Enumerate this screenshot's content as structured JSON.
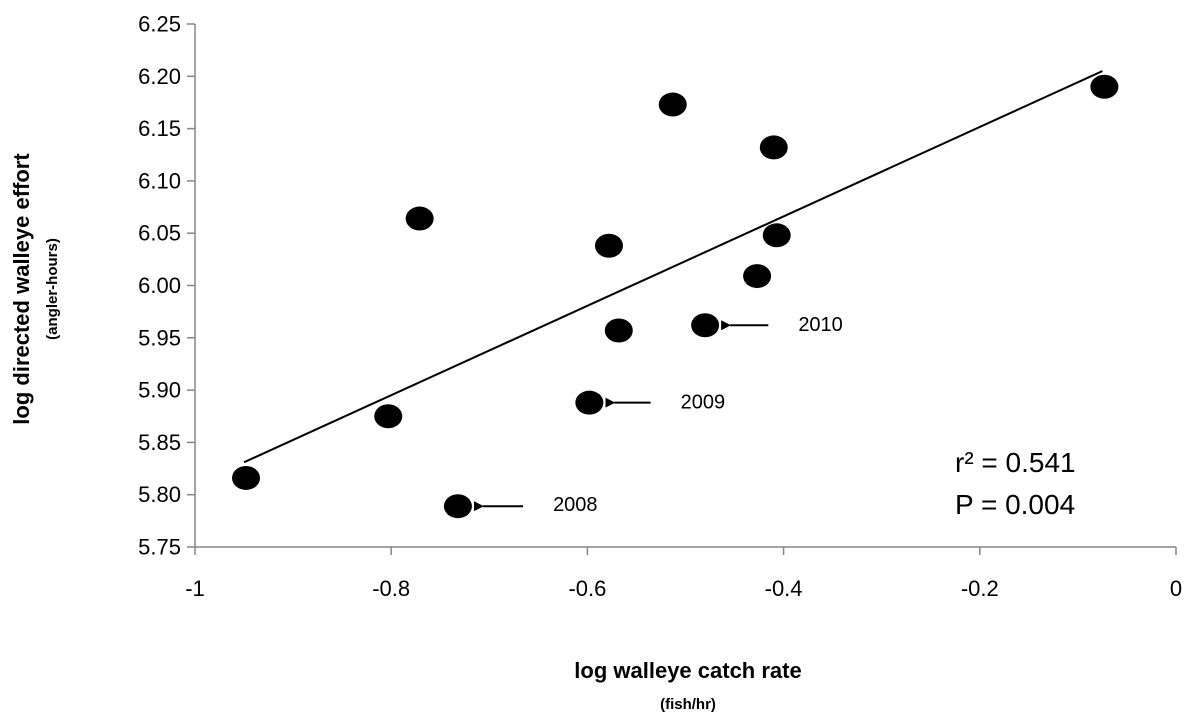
{
  "chart_data": {
    "type": "scatter",
    "title": "",
    "xlabel": "log walleye catch rate",
    "xlabel_unit": "(fish/hr)",
    "ylabel": "log directed walleye effort",
    "ylabel_unit": "(angler-hours)",
    "xlim": [
      -1,
      0
    ],
    "ylim": [
      5.75,
      6.25
    ],
    "x_ticks": [
      -1,
      -0.8,
      -0.6,
      -0.4,
      -0.2,
      0
    ],
    "x_tick_labels": [
      "-1",
      "-0.8",
      "-0.6",
      "-0.4",
      "-0.2",
      "0"
    ],
    "y_ticks": [
      5.75,
      5.8,
      5.85,
      5.9,
      5.95,
      6.0,
      6.05,
      6.1,
      6.15,
      6.2,
      6.25
    ],
    "y_tick_labels": [
      "5.75",
      "5.80",
      "5.85",
      "5.90",
      "5.95",
      "6.00",
      "6.05",
      "6.10",
      "6.15",
      "6.20",
      "6.25"
    ],
    "grid": false,
    "points": [
      {
        "x": -0.948,
        "y": 5.816
      },
      {
        "x": -0.803,
        "y": 5.875
      },
      {
        "x": -0.771,
        "y": 6.064
      },
      {
        "x": -0.732,
        "y": 5.789
      },
      {
        "x": -0.598,
        "y": 5.888
      },
      {
        "x": -0.578,
        "y": 6.038
      },
      {
        "x": -0.568,
        "y": 5.957
      },
      {
        "x": -0.513,
        "y": 6.173
      },
      {
        "x": -0.48,
        "y": 5.962
      },
      {
        "x": -0.427,
        "y": 6.009
      },
      {
        "x": -0.41,
        "y": 6.132
      },
      {
        "x": -0.407,
        "y": 6.048
      },
      {
        "x": -0.073,
        "y": 6.19
      }
    ],
    "trendline": {
      "x": [
        -0.95,
        -0.075
      ],
      "y": [
        5.831,
        6.205
      ]
    },
    "annotations": [
      {
        "label": "2008",
        "x": -0.732,
        "y": 5.789,
        "label_x": -0.635,
        "label_y": 5.79
      },
      {
        "label": "2009",
        "x": -0.598,
        "y": 5.888,
        "label_x": -0.505,
        "label_y": 5.888
      },
      {
        "label": "2010",
        "x": -0.48,
        "y": 5.962,
        "label_x": -0.385,
        "label_y": 5.962
      }
    ],
    "stats": {
      "r2": "r² = 0.541",
      "p": "P = 0.004"
    }
  }
}
